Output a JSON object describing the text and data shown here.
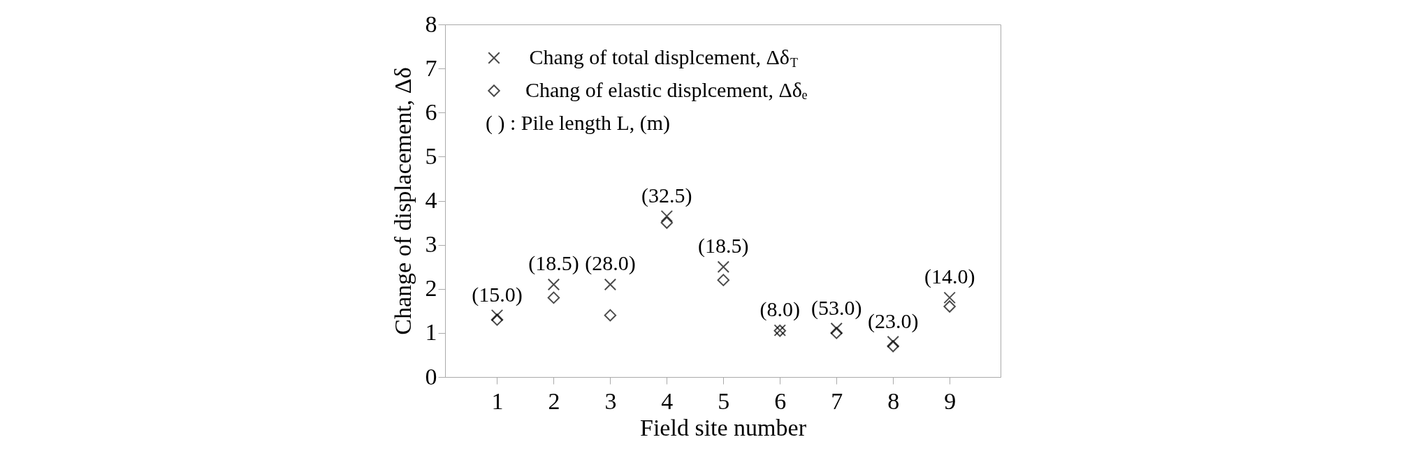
{
  "chart_data": {
    "type": "scatter",
    "xlabel": "Field site number",
    "ylabel": "Change of displacement, Δδ",
    "categories": [
      "1",
      "2",
      "3",
      "4",
      "5",
      "6",
      "7",
      "8",
      "9"
    ],
    "series": [
      {
        "name": "Chang of total displcement, Δδ$_{T}$",
        "color": "#000000",
        "marker": "cross",
        "values": [
          1.4,
          2.1,
          2.1,
          3.65,
          2.5,
          1.06,
          1.1,
          0.8,
          1.8
        ]
      },
      {
        "name": "Chang of elastic displcement, Δδₑ",
        "color": "#000000",
        "marker": "diamond",
        "values": [
          1.3,
          1.8,
          1.4,
          3.5,
          2.2,
          1.05,
          1.0,
          0.7,
          1.6
        ]
      }
    ],
    "ylim": [
      0,
      8
    ],
    "yticks": [
      0,
      1,
      2,
      3,
      4,
      5,
      6,
      7,
      8
    ],
    "grid": false,
    "legend": "top left",
    "annotations": [
      "( )    :    Pile length L, (m)",
      {
        "text": "(15.0)",
        "x": "1",
        "y": 1.4
      },
      {
        "text": "(18.5)",
        "x": "2",
        "y": 2.1
      },
      {
        "text": "(28.0)",
        "x": "3",
        "y": 2.1
      },
      {
        "text": "(32.5)",
        "x": "4",
        "y": 3.65
      },
      {
        "text": "(18.5)",
        "x": "5",
        "y": 2.5
      },
      {
        "text": "(8.0)",
        "x": "6",
        "y": 1.06
      },
      {
        "text": "(53.0)",
        "x": "7",
        "y": 1.1
      },
      {
        "text": "(23.0)",
        "x": "8",
        "y": 0.8
      },
      {
        "text": "(14.0)",
        "x": "9",
        "y": 1.8
      }
    ]
  }
}
